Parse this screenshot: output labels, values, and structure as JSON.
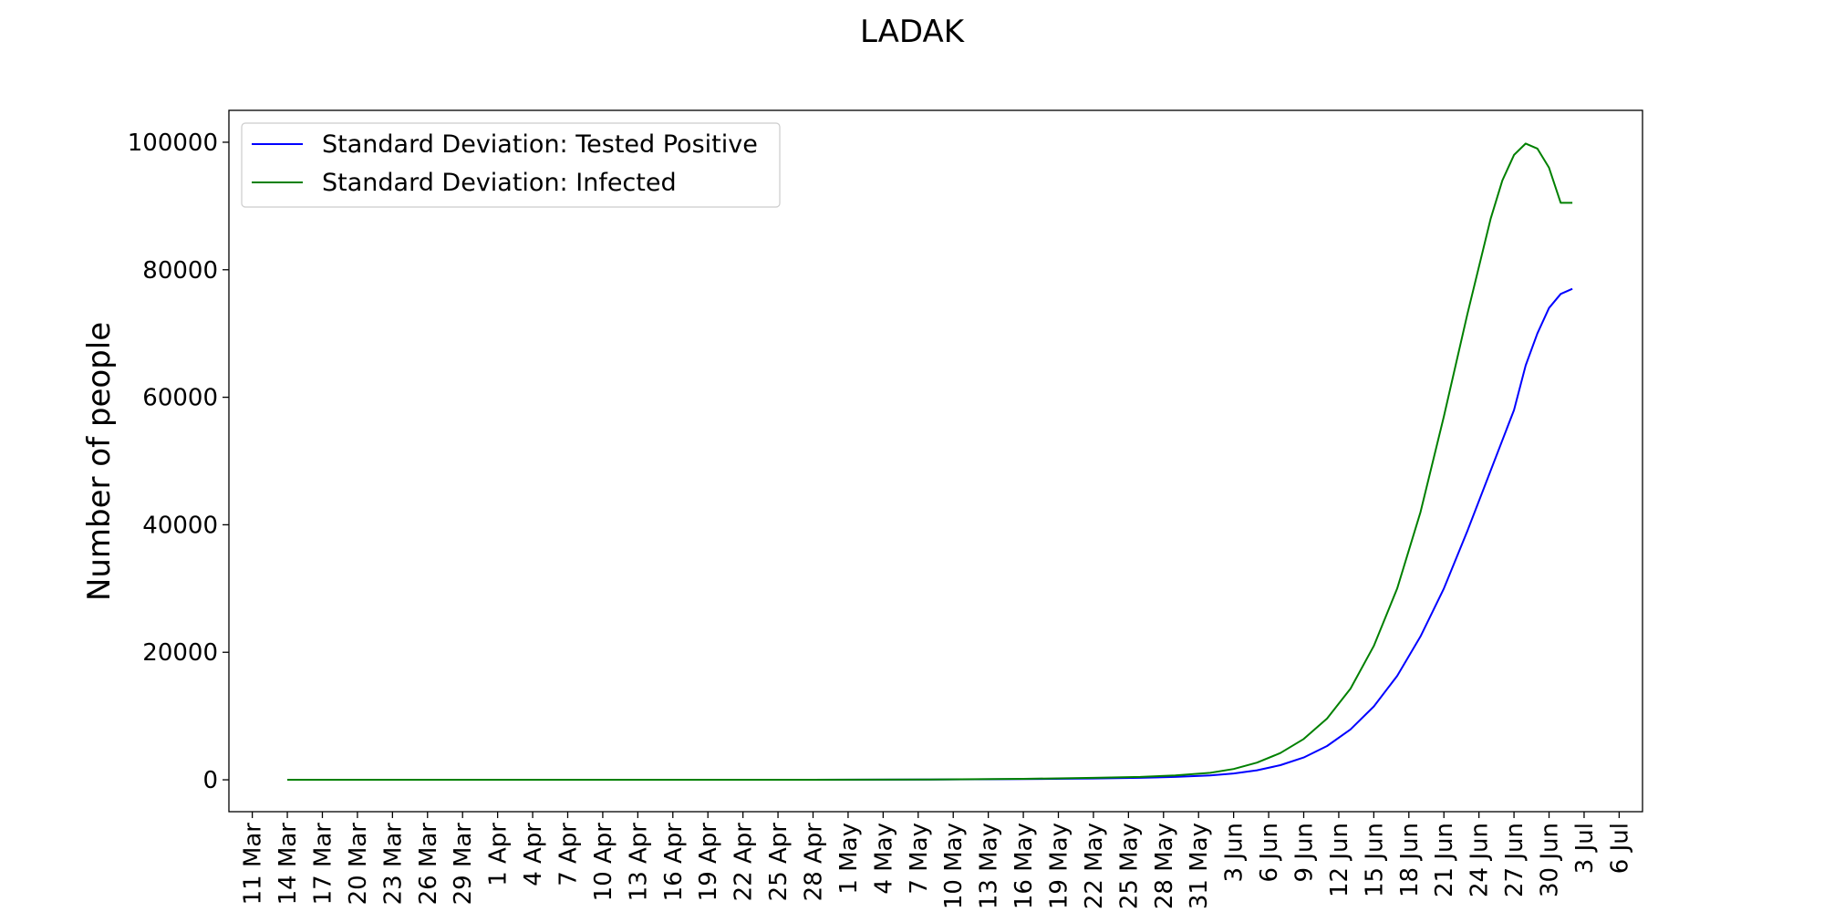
{
  "chart_data": {
    "type": "line",
    "title": "LADAK",
    "xlabel": "",
    "ylabel": "Number of people",
    "x_tick_labels": [
      "11 Mar",
      "14 Mar",
      "17 Mar",
      "20 Mar",
      "23 Mar",
      "26 Mar",
      "29 Mar",
      "1 Apr",
      "4 Apr",
      "7 Apr",
      "10 Apr",
      "13 Apr",
      "16 Apr",
      "19 Apr",
      "22 Apr",
      "25 Apr",
      "28 Apr",
      "1 May",
      "4 May",
      "7 May",
      "10 May",
      "13 May",
      "16 May",
      "19 May",
      "22 May",
      "25 May",
      "28 May",
      "31 May",
      "3 Jun",
      "6 Jun",
      "9 Jun",
      "12 Jun",
      "15 Jun",
      "18 Jun",
      "21 Jun",
      "24 Jun",
      "27 Jun",
      "30 Jun",
      "3 Jul",
      "6 Jul"
    ],
    "y_ticks": [
      0,
      20000,
      40000,
      60000,
      80000,
      100000
    ],
    "y_tick_labels": [
      "0",
      "20000",
      "40000",
      "60000",
      "80000",
      "100000"
    ],
    "ylim": [
      -5000,
      105000
    ],
    "xlim": [
      "2020-03-09",
      "2020-07-08"
    ],
    "grid": false,
    "legend_position": "upper-left",
    "series": [
      {
        "name": "Standard Deviation: Tested Positive",
        "color": "#0000ff",
        "x": [
          "2020-03-14",
          "2020-03-25",
          "2020-04-05",
          "2020-04-16",
          "2020-04-27",
          "2020-05-08",
          "2020-05-16",
          "2020-05-22",
          "2020-05-26",
          "2020-05-29",
          "2020-06-01",
          "2020-06-03",
          "2020-06-05",
          "2020-06-07",
          "2020-06-09",
          "2020-06-11",
          "2020-06-13",
          "2020-06-15",
          "2020-06-17",
          "2020-06-19",
          "2020-06-21",
          "2020-06-23",
          "2020-06-25",
          "2020-06-27",
          "2020-06-28",
          "2020-06-29",
          "2020-06-30",
          "2020-07-01",
          "2020-07-02"
        ],
        "y": [
          0,
          0,
          0,
          0,
          0,
          50,
          100,
          200,
          300,
          450,
          700,
          1000,
          1500,
          2300,
          3500,
          5300,
          7900,
          11500,
          16300,
          22500,
          30000,
          39000,
          48500,
          58000,
          65000,
          70000,
          74000,
          76200,
          77000
        ]
      },
      {
        "name": "Standard Deviation: Infected",
        "color": "#008000",
        "x": [
          "2020-03-14",
          "2020-03-25",
          "2020-04-05",
          "2020-04-16",
          "2020-04-27",
          "2020-05-08",
          "2020-05-16",
          "2020-05-22",
          "2020-05-26",
          "2020-05-29",
          "2020-06-01",
          "2020-06-03",
          "2020-06-05",
          "2020-06-07",
          "2020-06-09",
          "2020-06-11",
          "2020-06-13",
          "2020-06-15",
          "2020-06-17",
          "2020-06-19",
          "2020-06-21",
          "2020-06-23",
          "2020-06-25",
          "2020-06-26",
          "2020-06-27",
          "2020-06-28",
          "2020-06-29",
          "2020-06-30",
          "2020-07-01",
          "2020-07-02"
        ],
        "y": [
          0,
          0,
          0,
          0,
          0,
          50,
          150,
          300,
          450,
          700,
          1100,
          1700,
          2700,
          4200,
          6400,
          9600,
          14300,
          21000,
          30000,
          42000,
          57000,
          73000,
          88000,
          94000,
          98000,
          99800,
          99000,
          96000,
          90500,
          90500
        ]
      }
    ]
  }
}
